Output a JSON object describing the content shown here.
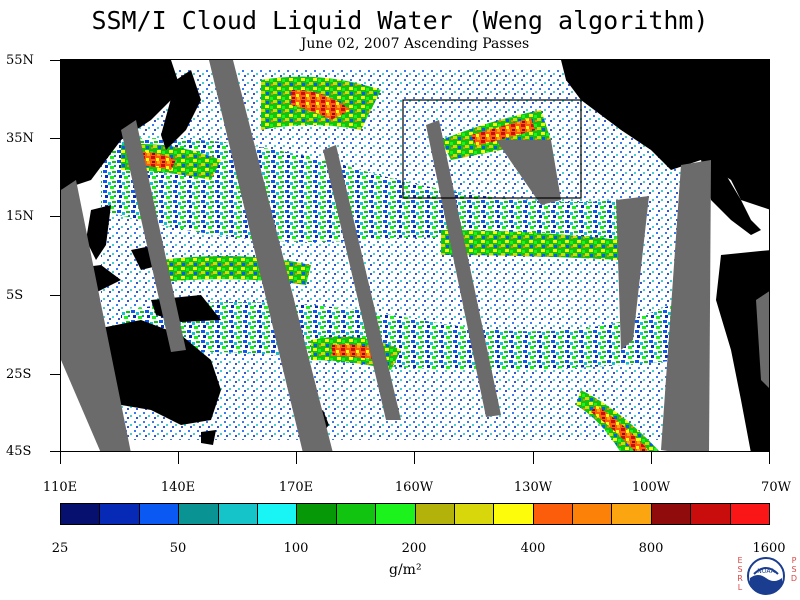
{
  "title": "SSM/I Cloud Liquid Water (Weng algorithm)",
  "subtitle": "June 02, 2007  Ascending Passes",
  "map": {
    "lat_labels": [
      "55N",
      "35N",
      "15N",
      "5S",
      "25S",
      "45S"
    ],
    "lon_labels": [
      "110E",
      "140E",
      "170E",
      "160W",
      "130W",
      "100W",
      "70W"
    ],
    "colors": {
      "land": "#000000",
      "ocean_clear": "#ffffff",
      "swath_gap": "#6b6b6b",
      "inset_box": "#000000"
    }
  },
  "colorbar": {
    "colors": [
      "#06106f",
      "#0629b6",
      "#0a59f2",
      "#0a9393",
      "#14c4c9",
      "#19f4f4",
      "#069806",
      "#10c410",
      "#1cf21c",
      "#b2b20b",
      "#d7d70c",
      "#fcfc0b",
      "#fc5d0b",
      "#fb8108",
      "#fba610",
      "#900b0b",
      "#c90d0d",
      "#fa1616"
    ],
    "tick_labels": [
      "25",
      "50",
      "100",
      "200",
      "400",
      "800",
      "1600"
    ],
    "units": "g/m²"
  },
  "logo": {
    "left_letters": [
      "E",
      "S",
      "R",
      "L"
    ],
    "right_letters": [
      "P",
      "S",
      "D"
    ],
    "center_text": "NOAA"
  }
}
